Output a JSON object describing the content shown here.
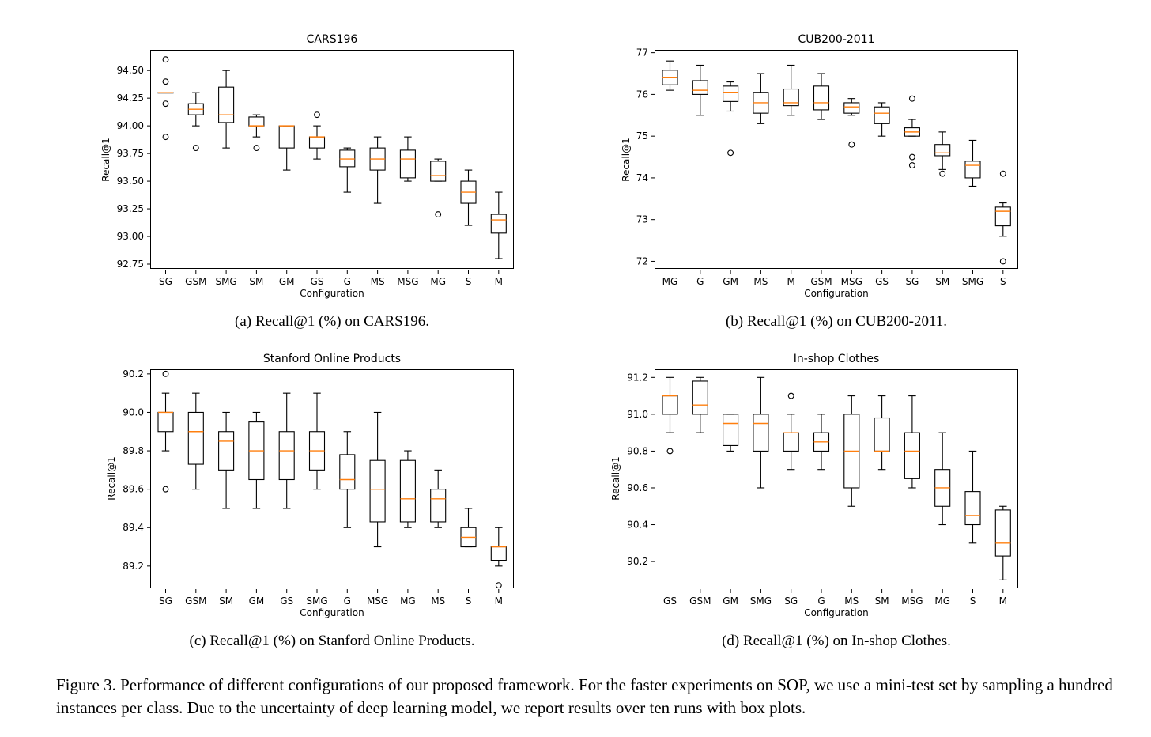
{
  "figure_caption": "Figure 3. Performance of different configurations of our proposed framework. For the faster experiments on SOP, we use a mini-test set by sampling a hundred instances per class. Due to the uncertainty of deep learning model, we report results over ten runs with box plots.",
  "colors": {
    "median": "#ff7f0e",
    "box": "#000000"
  },
  "panels": [
    {
      "caption": "(a) Recall@1 (%) on CARS196."
    },
    {
      "caption": "(b) Recall@1 (%) on CUB200-2011."
    },
    {
      "caption": "(c) Recall@1 (%) on Stanford Online Products."
    },
    {
      "caption": "(d) Recall@1 (%) on In-shop Clothes."
    }
  ],
  "chart_data": [
    {
      "type": "box",
      "title": "CARS196",
      "xlabel": "Configuration",
      "ylabel": "Recall@1",
      "ylim": [
        92.7,
        94.68
      ],
      "yticks": [
        92.75,
        93.0,
        93.25,
        93.5,
        93.75,
        94.0,
        94.25,
        94.5
      ],
      "ytick_labels": [
        "92.75",
        "93.00",
        "93.25",
        "93.50",
        "93.75",
        "94.00",
        "94.25",
        "94.50"
      ],
      "categories": [
        "SG",
        "GSM",
        "SMG",
        "SM",
        "GM",
        "GS",
        "G",
        "MS",
        "MSG",
        "MG",
        "S",
        "M"
      ],
      "boxes": [
        {
          "wl": 94.3,
          "q1": 94.3,
          "med": 94.3,
          "q3": 94.3,
          "wh": 94.3,
          "fliers": [
            94.6,
            94.4,
            94.2,
            93.9
          ]
        },
        {
          "wl": 94.0,
          "q1": 94.1,
          "med": 94.15,
          "q3": 94.2,
          "wh": 94.3,
          "fliers": [
            93.8
          ]
        },
        {
          "wl": 93.8,
          "q1": 94.03,
          "med": 94.1,
          "q3": 94.35,
          "wh": 94.5,
          "fliers": []
        },
        {
          "wl": 93.9,
          "q1": 94.0,
          "med": 94.0,
          "q3": 94.08,
          "wh": 94.1,
          "fliers": [
            93.8
          ]
        },
        {
          "wl": 93.6,
          "q1": 93.8,
          "med": 94.0,
          "q3": 94.0,
          "wh": 94.0,
          "fliers": []
        },
        {
          "wl": 93.7,
          "q1": 93.8,
          "med": 93.9,
          "q3": 93.9,
          "wh": 94.0,
          "fliers": [
            94.1
          ]
        },
        {
          "wl": 93.4,
          "q1": 93.63,
          "med": 93.7,
          "q3": 93.78,
          "wh": 93.8,
          "fliers": []
        },
        {
          "wl": 93.3,
          "q1": 93.6,
          "med": 93.7,
          "q3": 93.8,
          "wh": 93.9,
          "fliers": []
        },
        {
          "wl": 93.5,
          "q1": 93.53,
          "med": 93.7,
          "q3": 93.78,
          "wh": 93.9,
          "fliers": []
        },
        {
          "wl": 93.5,
          "q1": 93.5,
          "med": 93.55,
          "q3": 93.68,
          "wh": 93.7,
          "fliers": [
            93.2
          ]
        },
        {
          "wl": 93.1,
          "q1": 93.3,
          "med": 93.4,
          "q3": 93.5,
          "wh": 93.6,
          "fliers": []
        },
        {
          "wl": 92.8,
          "q1": 93.03,
          "med": 93.15,
          "q3": 93.2,
          "wh": 93.4,
          "fliers": []
        }
      ]
    },
    {
      "type": "box",
      "title": "CUB200-2011",
      "xlabel": "Configuration",
      "ylabel": "Recall@1",
      "ylim": [
        71.8,
        77.05
      ],
      "yticks": [
        72,
        73,
        74,
        75,
        76,
        77
      ],
      "ytick_labels": [
        "72",
        "73",
        "74",
        "75",
        "76",
        "77"
      ],
      "categories": [
        "MG",
        "G",
        "GM",
        "MS",
        "M",
        "GSM",
        "MSG",
        "GS",
        "SG",
        "SM",
        "SMG",
        "S"
      ],
      "boxes": [
        {
          "wl": 76.1,
          "q1": 76.23,
          "med": 76.4,
          "q3": 76.58,
          "wh": 76.8,
          "fliers": []
        },
        {
          "wl": 75.5,
          "q1": 76.0,
          "med": 76.1,
          "q3": 76.33,
          "wh": 76.7,
          "fliers": []
        },
        {
          "wl": 75.6,
          "q1": 75.83,
          "med": 76.05,
          "q3": 76.2,
          "wh": 76.3,
          "fliers": [
            74.6
          ]
        },
        {
          "wl": 75.3,
          "q1": 75.55,
          "med": 75.8,
          "q3": 76.05,
          "wh": 76.5,
          "fliers": []
        },
        {
          "wl": 75.5,
          "q1": 75.73,
          "med": 75.8,
          "q3": 76.13,
          "wh": 76.7,
          "fliers": []
        },
        {
          "wl": 75.4,
          "q1": 75.63,
          "med": 75.8,
          "q3": 76.2,
          "wh": 76.5,
          "fliers": []
        },
        {
          "wl": 75.5,
          "q1": 75.55,
          "med": 75.7,
          "q3": 75.8,
          "wh": 75.9,
          "fliers": [
            74.8
          ]
        },
        {
          "wl": 75.0,
          "q1": 75.3,
          "med": 75.55,
          "q3": 75.7,
          "wh": 75.8,
          "fliers": []
        },
        {
          "wl": 75.0,
          "q1": 75.0,
          "med": 75.1,
          "q3": 75.2,
          "wh": 75.4,
          "fliers": [
            75.9,
            74.5,
            74.3
          ]
        },
        {
          "wl": 74.2,
          "q1": 74.53,
          "med": 74.6,
          "q3": 74.8,
          "wh": 75.1,
          "fliers": [
            74.1
          ]
        },
        {
          "wl": 73.8,
          "q1": 74.0,
          "med": 74.3,
          "q3": 74.4,
          "wh": 74.9,
          "fliers": []
        },
        {
          "wl": 72.6,
          "q1": 72.85,
          "med": 73.2,
          "q3": 73.3,
          "wh": 73.4,
          "fliers": [
            74.1,
            72.0
          ]
        }
      ]
    },
    {
      "type": "box",
      "title": "Stanford Online Products",
      "xlabel": "Configuration",
      "ylabel": "Recall@1",
      "ylim": [
        89.08,
        90.22
      ],
      "yticks": [
        89.2,
        89.4,
        89.6,
        89.8,
        90.0,
        90.2
      ],
      "ytick_labels": [
        "89.2",
        "89.4",
        "89.6",
        "89.8",
        "90.0",
        "90.2"
      ],
      "categories": [
        "SG",
        "GSM",
        "SM",
        "GM",
        "GS",
        "SMG",
        "G",
        "MSG",
        "MG",
        "MS",
        "S",
        "M"
      ],
      "boxes": [
        {
          "wl": 89.8,
          "q1": 89.9,
          "med": 90.0,
          "q3": 90.0,
          "wh": 90.1,
          "fliers": [
            90.2,
            89.6
          ]
        },
        {
          "wl": 89.6,
          "q1": 89.73,
          "med": 89.9,
          "q3": 90.0,
          "wh": 90.1,
          "fliers": []
        },
        {
          "wl": 89.5,
          "q1": 89.7,
          "med": 89.85,
          "q3": 89.9,
          "wh": 90.0,
          "fliers": []
        },
        {
          "wl": 89.5,
          "q1": 89.65,
          "med": 89.8,
          "q3": 89.95,
          "wh": 90.0,
          "fliers": []
        },
        {
          "wl": 89.5,
          "q1": 89.65,
          "med": 89.8,
          "q3": 89.9,
          "wh": 90.1,
          "fliers": []
        },
        {
          "wl": 89.6,
          "q1": 89.7,
          "med": 89.8,
          "q3": 89.9,
          "wh": 90.1,
          "fliers": []
        },
        {
          "wl": 89.4,
          "q1": 89.6,
          "med": 89.65,
          "q3": 89.78,
          "wh": 89.9,
          "fliers": []
        },
        {
          "wl": 89.3,
          "q1": 89.43,
          "med": 89.6,
          "q3": 89.75,
          "wh": 90.0,
          "fliers": []
        },
        {
          "wl": 89.4,
          "q1": 89.43,
          "med": 89.55,
          "q3": 89.75,
          "wh": 89.8,
          "fliers": []
        },
        {
          "wl": 89.4,
          "q1": 89.43,
          "med": 89.55,
          "q3": 89.6,
          "wh": 89.7,
          "fliers": []
        },
        {
          "wl": 89.3,
          "q1": 89.3,
          "med": 89.35,
          "q3": 89.4,
          "wh": 89.5,
          "fliers": []
        },
        {
          "wl": 89.2,
          "q1": 89.23,
          "med": 89.3,
          "q3": 89.3,
          "wh": 89.4,
          "fliers": [
            89.1
          ]
        }
      ]
    },
    {
      "type": "box",
      "title": "In-shop Clothes",
      "xlabel": "Configuration",
      "ylabel": "Recall@1",
      "ylim": [
        90.05,
        91.24
      ],
      "yticks": [
        90.2,
        90.4,
        90.6,
        90.8,
        91.0,
        91.2
      ],
      "ytick_labels": [
        "90.2",
        "90.4",
        "90.6",
        "90.8",
        "91.0",
        "91.2"
      ],
      "categories": [
        "GS",
        "GSM",
        "GM",
        "SMG",
        "SG",
        "G",
        "MS",
        "SM",
        "MSG",
        "MG",
        "S",
        "M"
      ],
      "boxes": [
        {
          "wl": 90.9,
          "q1": 91.0,
          "med": 91.1,
          "q3": 91.1,
          "wh": 91.2,
          "fliers": [
            90.8
          ]
        },
        {
          "wl": 90.9,
          "q1": 91.0,
          "med": 91.05,
          "q3": 91.18,
          "wh": 91.2,
          "fliers": []
        },
        {
          "wl": 90.8,
          "q1": 90.83,
          "med": 90.95,
          "q3": 91.0,
          "wh": 91.0,
          "fliers": []
        },
        {
          "wl": 90.6,
          "q1": 90.8,
          "med": 90.95,
          "q3": 91.0,
          "wh": 91.2,
          "fliers": []
        },
        {
          "wl": 90.7,
          "q1": 90.8,
          "med": 90.9,
          "q3": 90.9,
          "wh": 91.0,
          "fliers": [
            91.1
          ]
        },
        {
          "wl": 90.7,
          "q1": 90.8,
          "med": 90.85,
          "q3": 90.9,
          "wh": 91.0,
          "fliers": []
        },
        {
          "wl": 90.5,
          "q1": 90.6,
          "med": 90.8,
          "q3": 91.0,
          "wh": 91.1,
          "fliers": []
        },
        {
          "wl": 90.7,
          "q1": 90.8,
          "med": 90.8,
          "q3": 90.98,
          "wh": 91.1,
          "fliers": []
        },
        {
          "wl": 90.6,
          "q1": 90.65,
          "med": 90.8,
          "q3": 90.9,
          "wh": 91.1,
          "fliers": []
        },
        {
          "wl": 90.4,
          "q1": 90.5,
          "med": 90.6,
          "q3": 90.7,
          "wh": 90.9,
          "fliers": []
        },
        {
          "wl": 90.3,
          "q1": 90.4,
          "med": 90.45,
          "q3": 90.58,
          "wh": 90.8,
          "fliers": []
        },
        {
          "wl": 90.1,
          "q1": 90.23,
          "med": 90.3,
          "q3": 90.48,
          "wh": 90.5,
          "fliers": []
        }
      ]
    }
  ]
}
